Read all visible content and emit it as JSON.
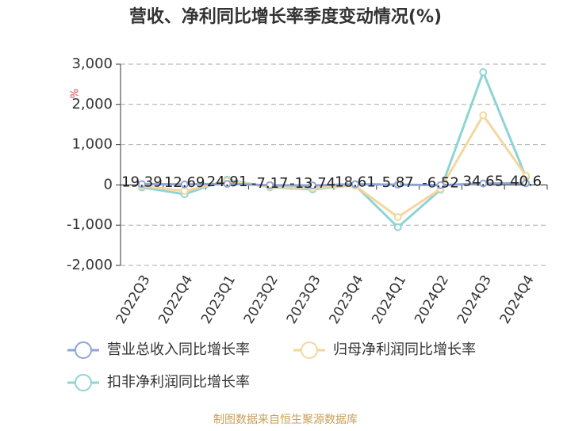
{
  "chart_data": {
    "type": "line",
    "title": "营收、净利同比增长率季度变动情况(%)",
    "y_label": "%",
    "categories": [
      "2022Q3",
      "2022Q4",
      "2023Q1",
      "2023Q2",
      "2023Q3",
      "2023Q4",
      "2024Q1",
      "2024Q2",
      "2024Q3",
      "2024Q4"
    ],
    "series": [
      {
        "name": "营业总收入同比增长率",
        "color": "#8fa4d6",
        "values": [
          19.39,
          12.69,
          24.91,
          -7.17,
          -13.74,
          18.61,
          5.87,
          -6.52,
          34.65,
          40.6
        ],
        "data_labels": true
      },
      {
        "name": "归母净利润同比增长率",
        "color": "#f5d69e",
        "values": [
          -30,
          -150,
          100,
          -50,
          -80,
          -20,
          -800,
          -100,
          1730,
          230
        ]
      },
      {
        "name": "扣非净利润同比增长率",
        "color": "#8fd4d4",
        "values": [
          -60,
          -230,
          130,
          -60,
          -110,
          -10,
          -1050,
          -120,
          2800,
          200
        ]
      }
    ],
    "ylim": [
      -2000,
      3000
    ],
    "yticks": [
      {
        "value": -2000,
        "label": "-2,000"
      },
      {
        "value": -1000,
        "label": "-1,000"
      },
      0,
      {
        "value": 1000,
        "label": "1,000"
      },
      {
        "value": 2000,
        "label": "2,000"
      },
      {
        "value": 3000,
        "label": "3,000"
      }
    ],
    "grid": true,
    "legend": "bottom",
    "source": "制图数据来自恒生聚源数据库"
  }
}
